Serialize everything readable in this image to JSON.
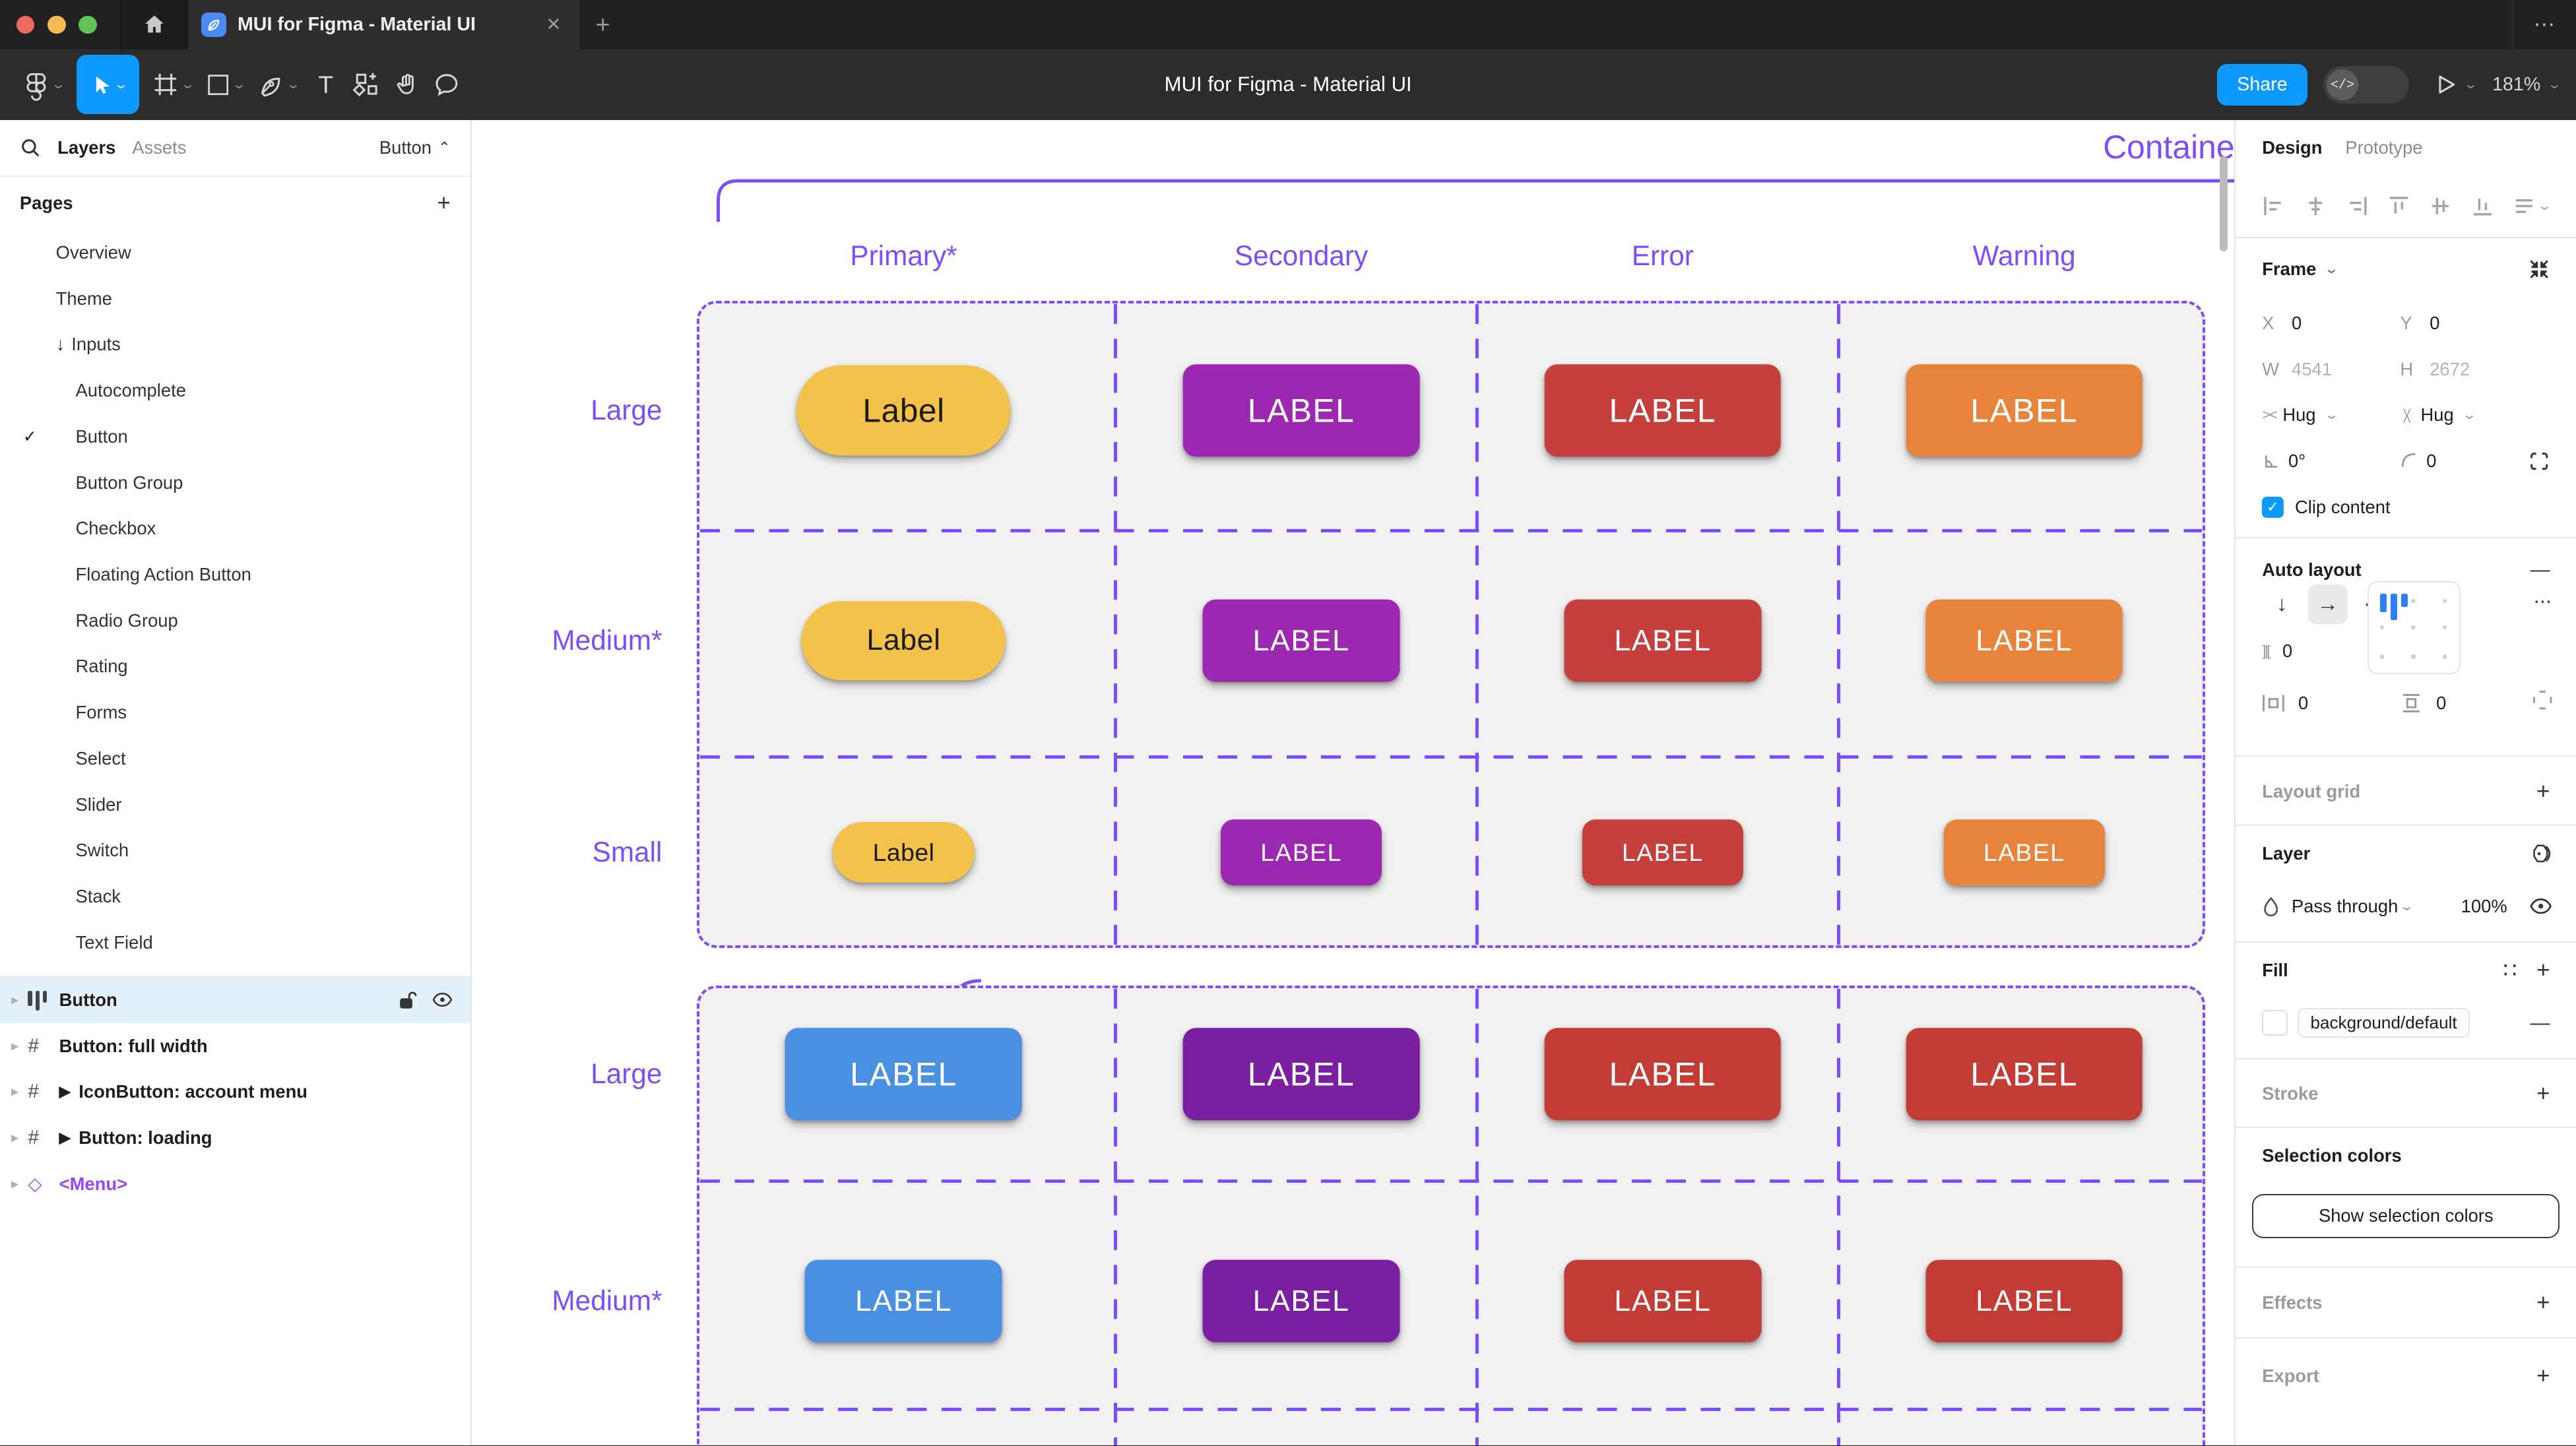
{
  "window": {
    "tab_title": "MUI for Figma - Material UI",
    "doc_title": "MUI for Figma - Material UI",
    "share_label": "Share",
    "zoom_level": "181%"
  },
  "glyphs": {
    "close": "✕",
    "new_tab": "+",
    "overflow": "⋯",
    "chevron_down": "⌄",
    "chevron_up": "⌃",
    "plus": "+",
    "minus": "—",
    "dots_h": "⋯",
    "styles": "∷",
    "arrow_down": "↓",
    "arrow_right": "→",
    "wrap": "↩",
    "row_chevron": "▸",
    "flow_play": "▶",
    "component_diamond": "◇",
    "check": "✓",
    "page_arrow": "↓",
    "gap_h": "]|[",
    "hug_h": "><"
  },
  "left_panel": {
    "tabs": {
      "layers": "Layers",
      "assets": "Assets"
    },
    "page_selector": "Button",
    "pages_header": "Pages",
    "pages": [
      {
        "label": "Overview",
        "indent": 1
      },
      {
        "label": "Theme",
        "indent": 1
      },
      {
        "label": "Inputs",
        "indent": 1,
        "arrow": true
      },
      {
        "label": "Autocomplete",
        "indent": 2
      },
      {
        "label": "Button",
        "indent": 2,
        "current": true
      },
      {
        "label": "Button Group",
        "indent": 2
      },
      {
        "label": "Checkbox",
        "indent": 2
      },
      {
        "label": "Floating Action Button",
        "indent": 2
      },
      {
        "label": "Radio Group",
        "indent": 2
      },
      {
        "label": "Rating",
        "indent": 2
      },
      {
        "label": "Forms",
        "indent": 2
      },
      {
        "label": "Select",
        "indent": 2
      },
      {
        "label": "Slider",
        "indent": 2
      },
      {
        "label": "Switch",
        "indent": 2
      },
      {
        "label": "Stack",
        "indent": 2
      },
      {
        "label": "Text Field",
        "indent": 2
      }
    ],
    "layers": [
      {
        "label": "Button",
        "icon": "auto-layout",
        "selected": true
      },
      {
        "label": "Button: full width",
        "icon": "frame"
      },
      {
        "label": "IconButton: account menu",
        "icon": "frame",
        "flow": true
      },
      {
        "label": "Button: loading",
        "icon": "frame",
        "flow": true
      },
      {
        "label": "<Menu>",
        "icon": "component"
      }
    ]
  },
  "right_panel": {
    "tabs": {
      "design": "Design",
      "prototype": "Prototype"
    },
    "frame": {
      "title": "Frame",
      "x_label": "X",
      "x": "0",
      "y_label": "Y",
      "y": "0",
      "w_label": "W",
      "w": "4541",
      "h_label": "H",
      "h": "2672",
      "hug_h": "Hug",
      "hug_v": "Hug",
      "rotation": "0°",
      "radius": "0",
      "clip_label": "Clip content"
    },
    "auto_layout": {
      "title": "Auto layout",
      "gap": "0",
      "padding_h": "0",
      "padding_v": "0"
    },
    "layout_grid": {
      "title": "Layout grid"
    },
    "layer": {
      "title": "Layer",
      "blend_mode": "Pass through",
      "opacity": "100%"
    },
    "fill": {
      "title": "Fill",
      "token": "background/default"
    },
    "stroke": {
      "title": "Stroke"
    },
    "selection_colors": {
      "title": "Selection colors",
      "button": "Show selection colors"
    },
    "effects": {
      "title": "Effects"
    },
    "export": {
      "title": "Export"
    }
  },
  "canvas": {
    "section_title": "Contained",
    "columns": [
      "Primary*",
      "Secondary",
      "Error",
      "Warning"
    ],
    "rows": [
      {
        "label": "Large",
        "size": "lg",
        "cells": [
          "primary_pill",
          "secondary",
          "error",
          "warning"
        ]
      },
      {
        "label": "Medium*",
        "size": "md",
        "cells": [
          "primary_pill",
          "secondary",
          "error",
          "warning"
        ]
      },
      {
        "label": "Small",
        "size": "sm",
        "cells": [
          "primary_pill",
          "secondary",
          "error",
          "warning"
        ]
      },
      {
        "label": "Large",
        "size": "lg",
        "cells": [
          "primary_blue",
          "secondary_dark",
          "error_dark",
          "error_dark"
        ]
      },
      {
        "label": "Medium*",
        "size": "md",
        "cells": [
          "primary_blue",
          "secondary_dark",
          "error_dark",
          "error_dark"
        ]
      }
    ],
    "button_labels": {
      "pill": "Label",
      "rect": "LABEL"
    },
    "variants": {
      "primary_pill": {
        "bg": "#F2C24A",
        "fg": "#1C1B16",
        "shape": "pill"
      },
      "secondary": {
        "bg": "#9C27B0",
        "fg": "#FFFFFF",
        "shape": "rect"
      },
      "error": {
        "bg": "#C5403D",
        "fg": "#FFFFFF",
        "shape": "rect"
      },
      "warning": {
        "bg": "#E8833C",
        "fg": "#FFFFFF",
        "shape": "rect"
      },
      "primary_blue": {
        "bg": "#4A90E2",
        "fg": "#FFFFFF",
        "shape": "rect"
      },
      "secondary_dark": {
        "bg": "#7B1FA2",
        "fg": "#FFFFFF",
        "shape": "rect"
      },
      "error_dark": {
        "bg": "#C23B35",
        "fg": "#FFFFFF",
        "shape": "rect"
      }
    },
    "annotation_color": "#7C4DFF"
  },
  "colors": {
    "accent_blue": "#0D99FF",
    "selected_row": "#E4F1FB",
    "component_purple": "#9747FF",
    "traffic_red": "#EE6A5F",
    "traffic_yellow": "#F5BD4F",
    "traffic_green": "#62C454"
  }
}
